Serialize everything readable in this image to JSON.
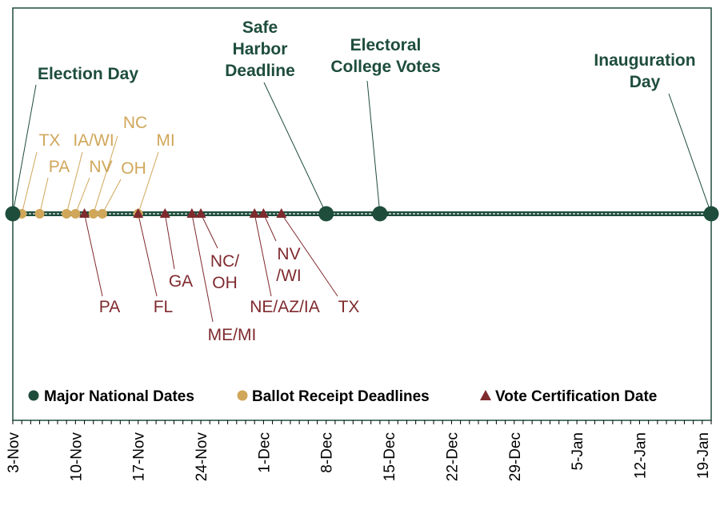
{
  "chart_data": {
    "type": "timeline",
    "x_axis": {
      "range": [
        "2020-11-03",
        "2021-01-20"
      ],
      "tick_labels": [
        "3-Nov",
        "10-Nov",
        "17-Nov",
        "24-Nov",
        "1-Dec",
        "8-Dec",
        "15-Dec",
        "22-Dec",
        "29-Dec",
        "5-Jan",
        "12-Jan",
        "19-Jan"
      ],
      "minor_ticks": "daily"
    },
    "legend": {
      "placement": "bottom",
      "items": [
        {
          "name": "Major National Dates",
          "marker": "circle",
          "color": "#1e4d3c"
        },
        {
          "name": "Ballot Receipt Deadlines",
          "marker": "circle",
          "color": "#d0a75a"
        },
        {
          "name": "Vote Certification Date",
          "marker": "triangle",
          "color": "#7f2a2e"
        }
      ]
    },
    "series": [
      {
        "name": "Major National Dates",
        "points": [
          {
            "date": "2020-11-03",
            "label": [
              "Election Day"
            ]
          },
          {
            "date": "2020-12-08",
            "label": [
              "Safe",
              "Harbor",
              "Deadline"
            ]
          },
          {
            "date": "2020-12-14",
            "label": [
              "Electoral",
              "College Votes"
            ]
          },
          {
            "date": "2021-01-20",
            "label": [
              "Inauguration",
              "Day"
            ]
          }
        ]
      },
      {
        "name": "Ballot Receipt Deadlines",
        "points": [
          {
            "date": "2020-11-04",
            "label": [
              "TX"
            ]
          },
          {
            "date": "2020-11-06",
            "label": [
              "PA"
            ]
          },
          {
            "date": "2020-11-09",
            "label": [
              "IA/WI"
            ]
          },
          {
            "date": "2020-11-10",
            "label": [
              "NV"
            ]
          },
          {
            "date": "2020-11-12",
            "label": [
              "NC"
            ]
          },
          {
            "date": "2020-11-13",
            "label": [
              "OH"
            ]
          },
          {
            "date": "2020-11-17",
            "label": [
              "MI"
            ]
          }
        ]
      },
      {
        "name": "Vote Certification Date",
        "points": [
          {
            "date": "2020-11-11",
            "label": [
              "PA"
            ]
          },
          {
            "date": "2020-11-17",
            "label": [
              "FL"
            ]
          },
          {
            "date": "2020-11-20",
            "label": [
              "GA"
            ]
          },
          {
            "date": "2020-11-23",
            "label": [
              "ME/MI"
            ]
          },
          {
            "date": "2020-11-24",
            "label": [
              "NC/",
              "OH"
            ]
          },
          {
            "date": "2020-11-30",
            "label": [
              "NE/AZ/IA"
            ]
          },
          {
            "date": "2020-12-01",
            "label": [
              "NV",
              "/WI"
            ]
          },
          {
            "date": "2020-12-03",
            "label": [
              "TX"
            ]
          }
        ]
      }
    ],
    "colors": {
      "national": "#1e4d3c",
      "ballot": "#d0a75a",
      "certification": "#7f2a2e",
      "frame": "#1e4d3c"
    }
  }
}
